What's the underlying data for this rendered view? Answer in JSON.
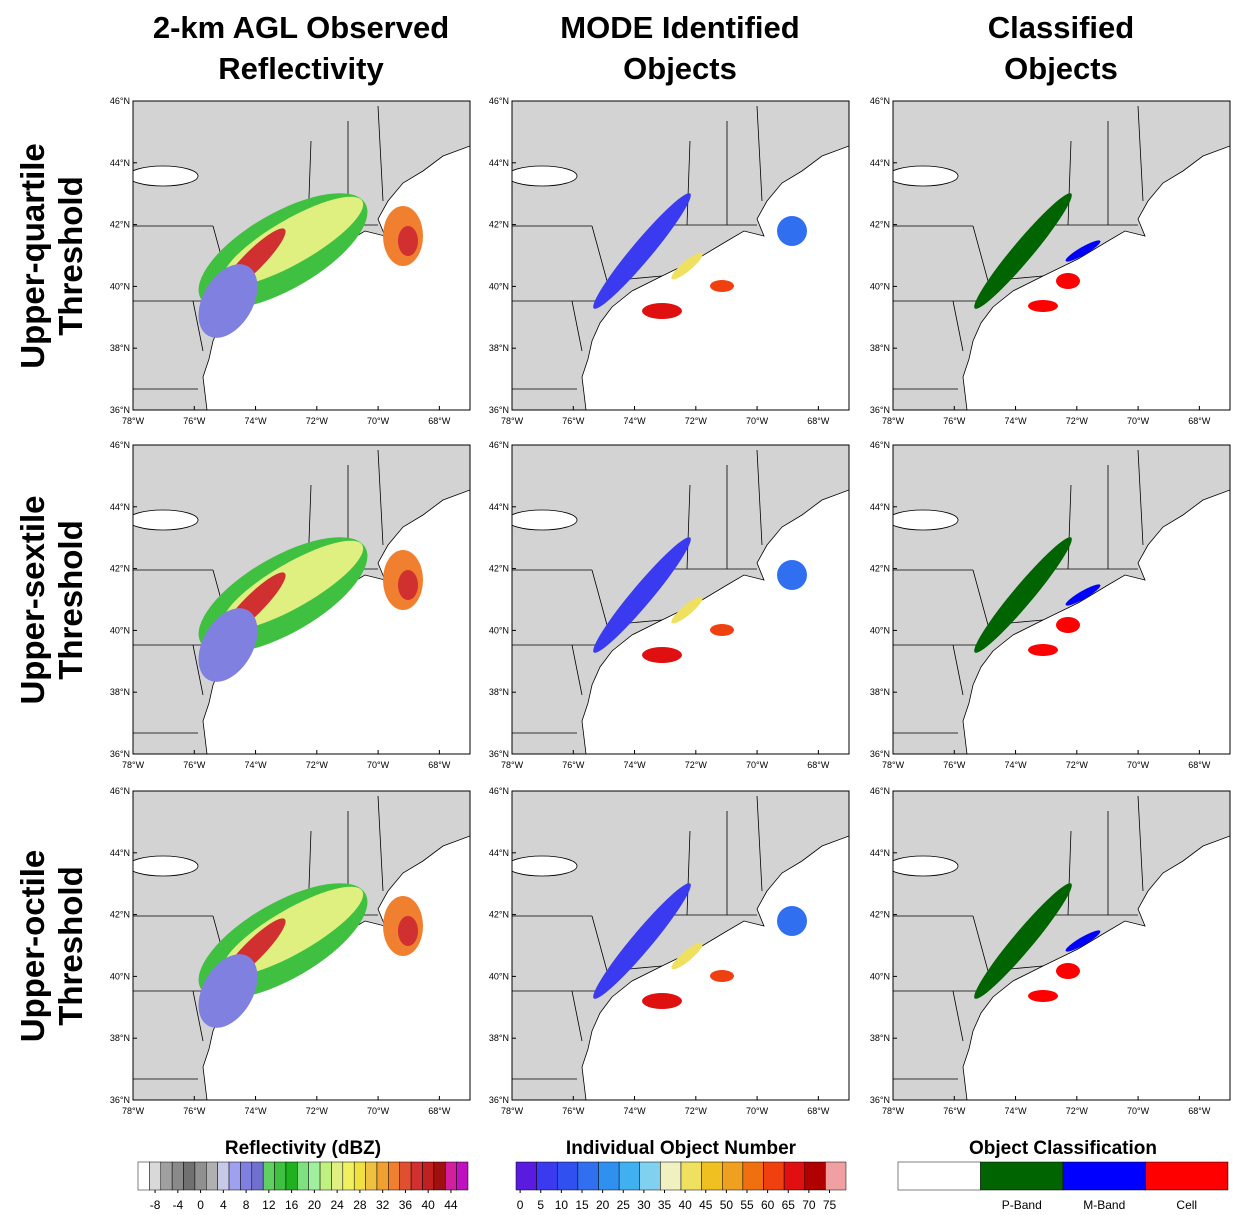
{
  "columns": [
    [
      "2-km AGL Observed",
      "Reflectivity"
    ],
    [
      "MODE Identified",
      "Objects"
    ],
    [
      "Classified",
      "Objects"
    ]
  ],
  "rows": [
    [
      "Upper-quartile",
      "Threshold"
    ],
    [
      "Upper-sextile",
      "Threshold"
    ],
    [
      "Upper-octile",
      "Threshold"
    ]
  ],
  "map": {
    "xlim": [
      -78,
      -67
    ],
    "ylim": [
      36,
      46
    ],
    "land_color": "#d3d3d3",
    "lat_ticks": [
      {
        "value": 36,
        "label": "36°N"
      },
      {
        "value": 38,
        "label": "38°N"
      },
      {
        "value": 40,
        "label": "40°N"
      },
      {
        "value": 42,
        "label": "42°N"
      },
      {
        "value": 44,
        "label": "44°N"
      },
      {
        "value": 46,
        "label": "46°N"
      }
    ],
    "lon_ticks": [
      {
        "value": -78,
        "label": "78°W"
      },
      {
        "value": -76,
        "label": "76°W"
      },
      {
        "value": -74,
        "label": "74°W"
      },
      {
        "value": -72,
        "label": "72°W"
      },
      {
        "value": -70,
        "label": "70°W"
      },
      {
        "value": -68,
        "label": "68°W"
      }
    ]
  },
  "colorbars": [
    {
      "title": "Reflectivity (dBZ)",
      "lim": [
        -11,
        47
      ],
      "ticks": [
        -8,
        -4,
        0,
        4,
        8,
        12,
        16,
        20,
        24,
        28,
        32,
        36,
        40,
        44
      ],
      "colors": [
        "#ffffff",
        "#d9d9d9",
        "#a0a0a0",
        "#8a8a8a",
        "#707070",
        "#909090",
        "#b0b0b0",
        "#c8c8e8",
        "#a0a0f0",
        "#8080e0",
        "#7070d0",
        "#60d060",
        "#40c040",
        "#20b020",
        "#80e080",
        "#a0f0a0",
        "#c0f080",
        "#e0f080",
        "#f0f060",
        "#f0e040",
        "#f0c040",
        "#f0a030",
        "#f08030",
        "#e05030",
        "#d03030",
        "#c02020",
        "#a01010",
        "#d020a0",
        "#c010c0"
      ]
    },
    {
      "title": "Individual Object Number",
      "lim": [
        -1,
        79
      ],
      "ticks": [
        0,
        5,
        10,
        15,
        20,
        25,
        30,
        35,
        40,
        45,
        50,
        55,
        60,
        65,
        70,
        75
      ],
      "colors": [
        "#5a1ae0",
        "#3a3af0",
        "#3050f0",
        "#3070f0",
        "#3090f0",
        "#40b0f0",
        "#80d0f0",
        "#f0f0c0",
        "#f0e060",
        "#f0c020",
        "#f0a020",
        "#f07010",
        "#f04010",
        "#e01010",
        "#b00000",
        "#f0a0a0"
      ]
    },
    {
      "title": "Object Classification",
      "colors": [
        "#ffffff",
        "#006400",
        "#0000ff",
        "#ff0000"
      ],
      "labels": [
        "P-Band",
        "M-Band",
        "Cell"
      ]
    }
  ]
}
